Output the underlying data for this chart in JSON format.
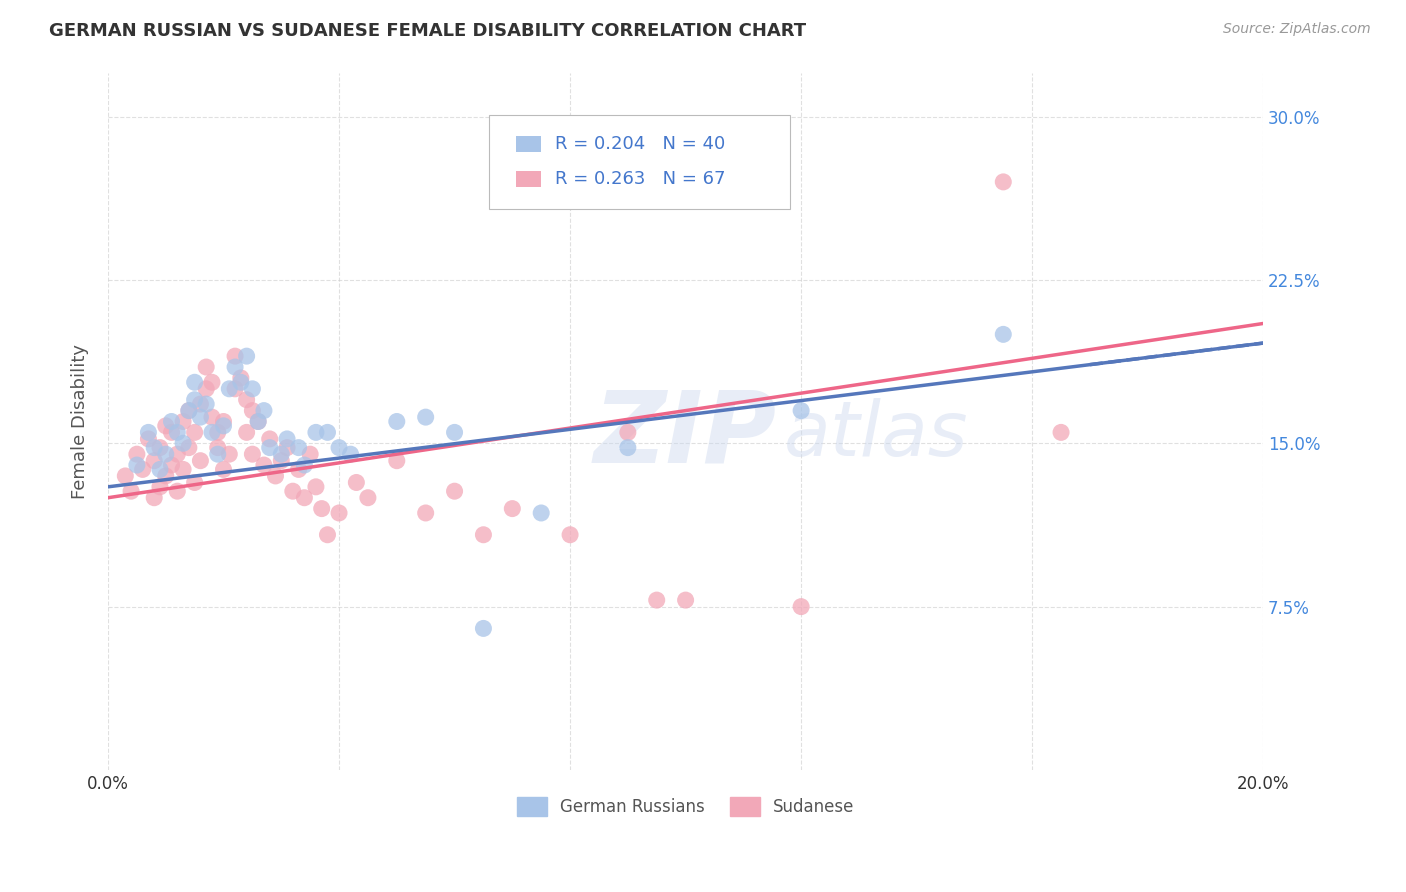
{
  "title": "GERMAN RUSSIAN VS SUDANESE FEMALE DISABILITY CORRELATION CHART",
  "source": "Source: ZipAtlas.com",
  "ylabel": "Female Disability",
  "watermark": "ZIPatlas",
  "xmin": 0.0,
  "xmax": 0.2,
  "ymin": 0.0,
  "ymax": 0.32,
  "yticks": [
    0.075,
    0.15,
    0.225,
    0.3
  ],
  "ytick_labels": [
    "7.5%",
    "15.0%",
    "22.5%",
    "30.0%"
  ],
  "xticks": [
    0.0,
    0.04,
    0.08,
    0.12,
    0.16,
    0.2
  ],
  "xtick_labels": [
    "0.0%",
    "",
    "",
    "",
    "",
    "20.0%"
  ],
  "blue_color": "#a8c4e8",
  "pink_color": "#f2a8b8",
  "blue_line_color": "#5577bb",
  "pink_line_color": "#ee6688",
  "blue_scatter": [
    [
      0.005,
      0.14
    ],
    [
      0.007,
      0.155
    ],
    [
      0.008,
      0.148
    ],
    [
      0.009,
      0.138
    ],
    [
      0.01,
      0.145
    ],
    [
      0.011,
      0.16
    ],
    [
      0.012,
      0.155
    ],
    [
      0.013,
      0.15
    ],
    [
      0.014,
      0.165
    ],
    [
      0.015,
      0.17
    ],
    [
      0.015,
      0.178
    ],
    [
      0.016,
      0.162
    ],
    [
      0.017,
      0.168
    ],
    [
      0.018,
      0.155
    ],
    [
      0.019,
      0.145
    ],
    [
      0.02,
      0.158
    ],
    [
      0.021,
      0.175
    ],
    [
      0.022,
      0.185
    ],
    [
      0.023,
      0.178
    ],
    [
      0.024,
      0.19
    ],
    [
      0.025,
      0.175
    ],
    [
      0.026,
      0.16
    ],
    [
      0.027,
      0.165
    ],
    [
      0.028,
      0.148
    ],
    [
      0.03,
      0.145
    ],
    [
      0.031,
      0.152
    ],
    [
      0.033,
      0.148
    ],
    [
      0.034,
      0.14
    ],
    [
      0.036,
      0.155
    ],
    [
      0.038,
      0.155
    ],
    [
      0.04,
      0.148
    ],
    [
      0.042,
      0.145
    ],
    [
      0.05,
      0.16
    ],
    [
      0.055,
      0.162
    ],
    [
      0.06,
      0.155
    ],
    [
      0.065,
      0.065
    ],
    [
      0.075,
      0.118
    ],
    [
      0.09,
      0.148
    ],
    [
      0.12,
      0.165
    ],
    [
      0.155,
      0.2
    ]
  ],
  "pink_scatter": [
    [
      0.003,
      0.135
    ],
    [
      0.004,
      0.128
    ],
    [
      0.005,
      0.145
    ],
    [
      0.006,
      0.138
    ],
    [
      0.007,
      0.152
    ],
    [
      0.008,
      0.125
    ],
    [
      0.008,
      0.142
    ],
    [
      0.009,
      0.13
    ],
    [
      0.009,
      0.148
    ],
    [
      0.01,
      0.135
    ],
    [
      0.01,
      0.158
    ],
    [
      0.011,
      0.14
    ],
    [
      0.011,
      0.155
    ],
    [
      0.012,
      0.128
    ],
    [
      0.012,
      0.145
    ],
    [
      0.013,
      0.138
    ],
    [
      0.013,
      0.16
    ],
    [
      0.014,
      0.148
    ],
    [
      0.014,
      0.165
    ],
    [
      0.015,
      0.132
    ],
    [
      0.015,
      0.155
    ],
    [
      0.016,
      0.142
    ],
    [
      0.016,
      0.168
    ],
    [
      0.017,
      0.175
    ],
    [
      0.017,
      0.185
    ],
    [
      0.018,
      0.178
    ],
    [
      0.018,
      0.162
    ],
    [
      0.019,
      0.148
    ],
    [
      0.019,
      0.155
    ],
    [
      0.02,
      0.138
    ],
    [
      0.02,
      0.16
    ],
    [
      0.021,
      0.145
    ],
    [
      0.022,
      0.175
    ],
    [
      0.022,
      0.19
    ],
    [
      0.023,
      0.18
    ],
    [
      0.024,
      0.17
    ],
    [
      0.024,
      0.155
    ],
    [
      0.025,
      0.165
    ],
    [
      0.025,
      0.145
    ],
    [
      0.026,
      0.16
    ],
    [
      0.027,
      0.14
    ],
    [
      0.028,
      0.152
    ],
    [
      0.029,
      0.135
    ],
    [
      0.03,
      0.142
    ],
    [
      0.031,
      0.148
    ],
    [
      0.032,
      0.128
    ],
    [
      0.033,
      0.138
    ],
    [
      0.034,
      0.125
    ],
    [
      0.035,
      0.145
    ],
    [
      0.036,
      0.13
    ],
    [
      0.037,
      0.12
    ],
    [
      0.038,
      0.108
    ],
    [
      0.04,
      0.118
    ],
    [
      0.043,
      0.132
    ],
    [
      0.045,
      0.125
    ],
    [
      0.05,
      0.142
    ],
    [
      0.055,
      0.118
    ],
    [
      0.06,
      0.128
    ],
    [
      0.065,
      0.108
    ],
    [
      0.07,
      0.12
    ],
    [
      0.08,
      0.108
    ],
    [
      0.09,
      0.155
    ],
    [
      0.095,
      0.078
    ],
    [
      0.1,
      0.078
    ],
    [
      0.12,
      0.075
    ],
    [
      0.155,
      0.27
    ],
    [
      0.165,
      0.155
    ]
  ],
  "blue_trendline": [
    0.13,
    0.196
  ],
  "pink_trendline": [
    0.125,
    0.205
  ],
  "legend_text_color": "#4477cc",
  "background_color": "#ffffff",
  "grid_color": "#cccccc"
}
